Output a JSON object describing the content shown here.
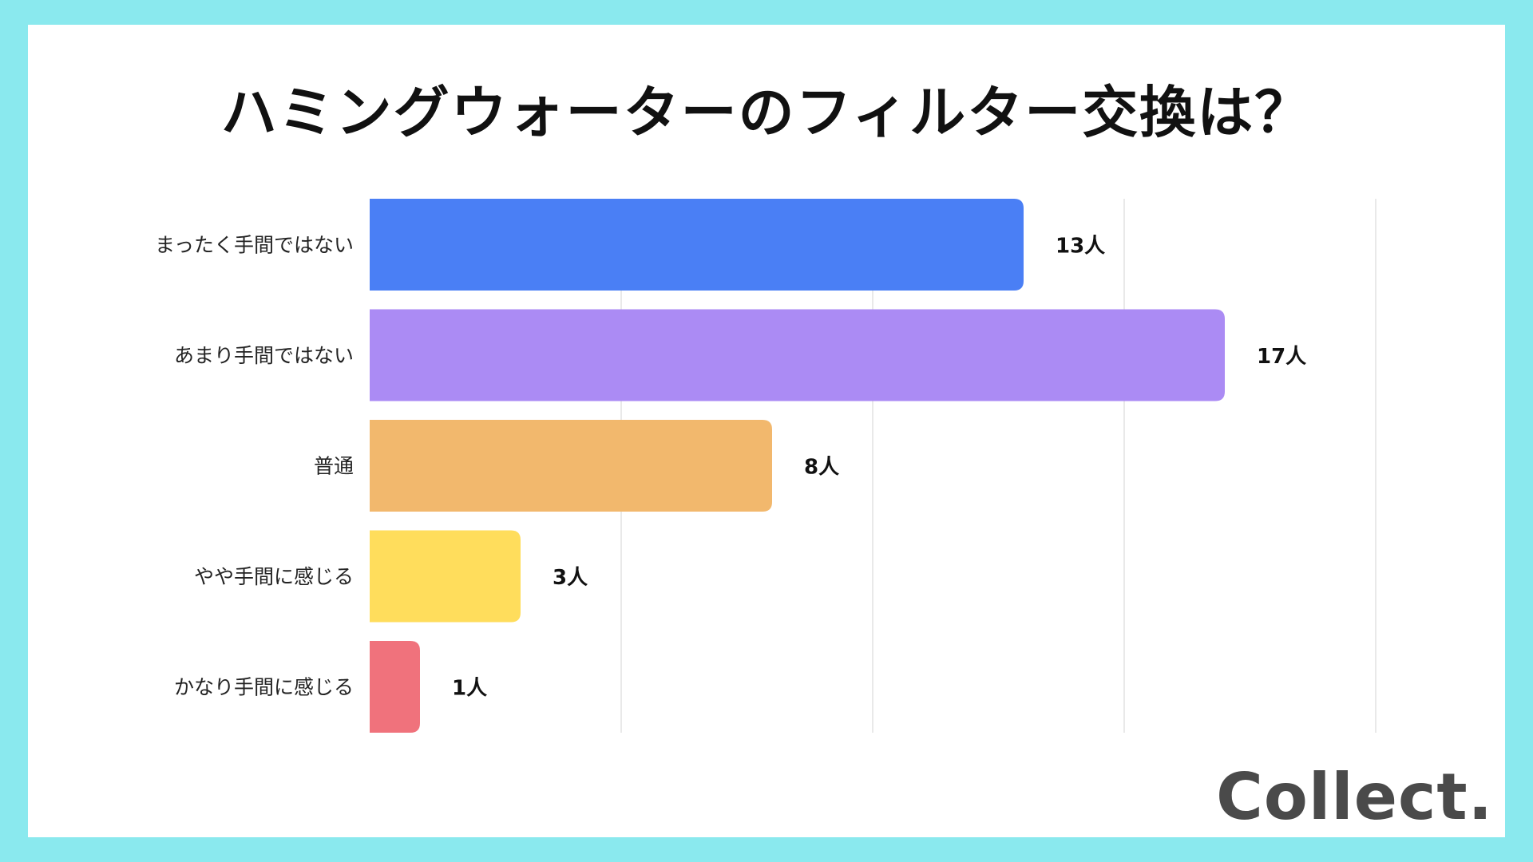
{
  "title": "ハミングウォーターのフィルター交換は？",
  "brand": {
    "logo_text": "Collect.",
    "background_color": "#8ae9ee",
    "logo_color": "#4a4a4a"
  },
  "chart_data": {
    "type": "bar",
    "orientation": "horizontal",
    "title": "ハミングウォーターのフィルター交換は？",
    "categories": [
      "まったく手間ではない",
      "あまり手間ではない",
      "普通",
      "やや手間に感じる",
      "かなり手間に感じる"
    ],
    "values": [
      13,
      17,
      8,
      3,
      1
    ],
    "value_labels": [
      "13人",
      "17人",
      "8人",
      "3人",
      "1人"
    ],
    "unit": "人",
    "xlim": [
      0,
      20
    ],
    "grid": true,
    "legend": "none",
    "colors": [
      "#4a7ff5",
      "#ab8bf4",
      "#f2b86d",
      "#ffdd5c",
      "#f0727c"
    ]
  }
}
